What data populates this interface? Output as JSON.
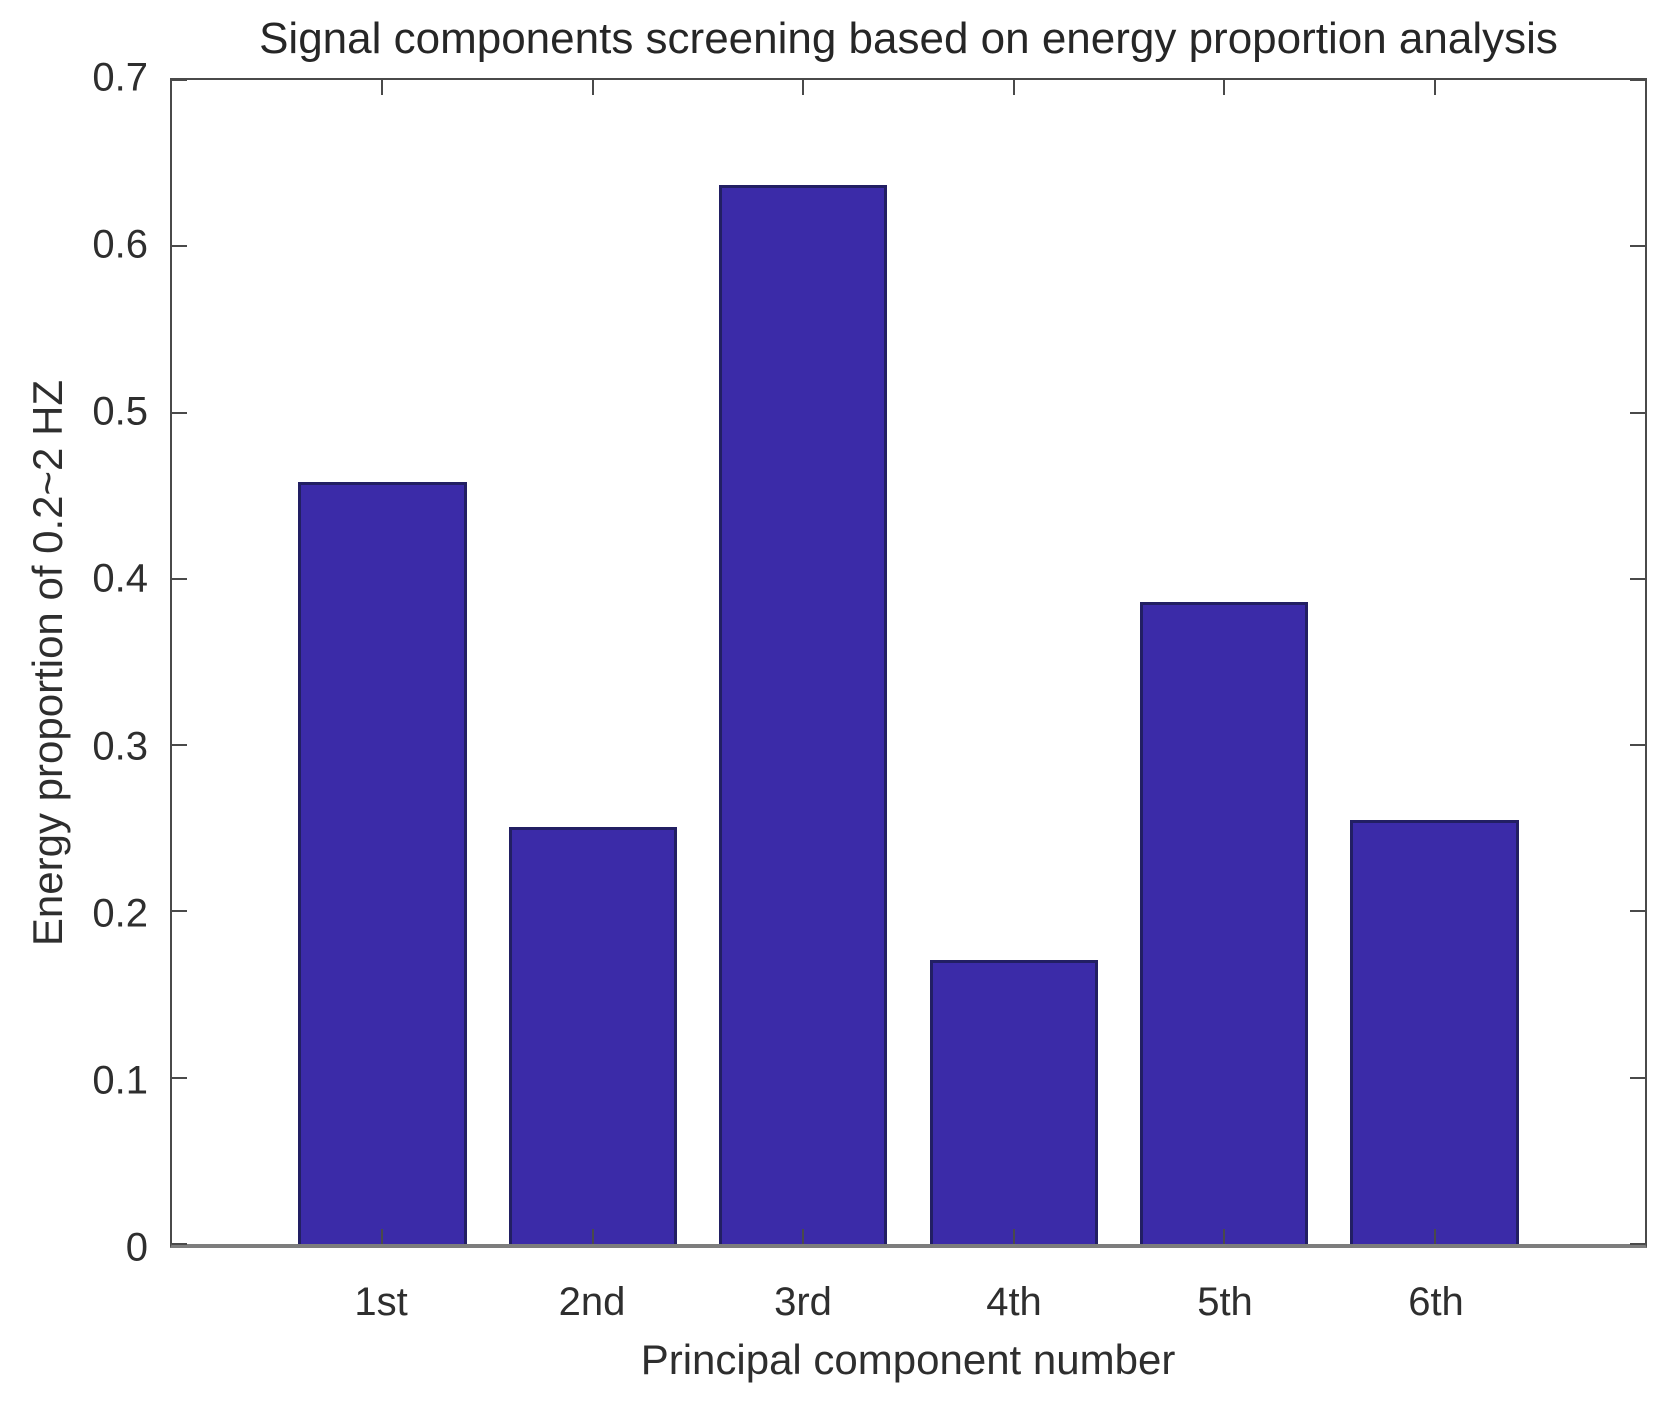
{
  "chart_data": {
    "type": "bar",
    "title": "Signal components screening based on energy proportion analysis",
    "xlabel": "Principal component number",
    "ylabel": "Energy proportion of 0.2~2 HZ",
    "categories": [
      "1st",
      "2nd",
      "3rd",
      "4th",
      "5th",
      "6th"
    ],
    "values": [
      0.458,
      0.251,
      0.637,
      0.171,
      0.386,
      0.255
    ],
    "x_positions": [
      1,
      2,
      3,
      4,
      5,
      6
    ],
    "xlim": [
      0,
      7
    ],
    "ylim": [
      0,
      0.7
    ],
    "yticks": [
      0,
      0.1,
      0.2,
      0.3,
      0.4,
      0.5,
      0.6,
      0.7
    ],
    "ytick_labels": [
      "0",
      "0.1",
      "0.2",
      "0.3",
      "0.4",
      "0.5",
      "0.6",
      "0.7"
    ],
    "bar_width_fraction": 0.8,
    "bar_fill_color": "#3b2ba8",
    "bar_edge_color": "#221f63",
    "axis_color": "#4a4a4a",
    "text_color": "#2e2e2e",
    "grid": false,
    "legend_position": "none"
  }
}
